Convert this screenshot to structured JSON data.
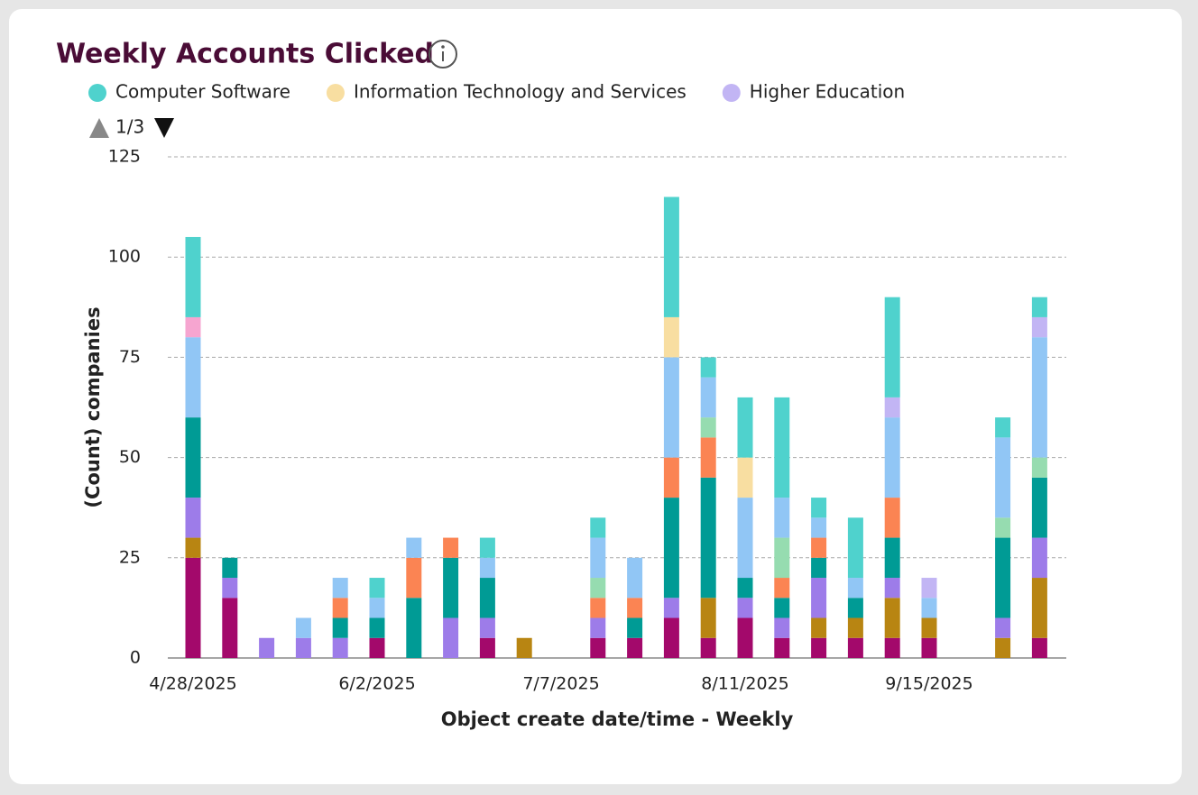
{
  "chart_data": {
    "type": "bar",
    "stacked": true,
    "title": "Weekly Accounts Clicked",
    "legend_page": "1/3",
    "xlabel": "Object create date/time - Weekly",
    "ylabel": "(Count) companies",
    "categories": [
      "4/28/2025",
      null,
      null,
      null,
      null,
      "6/2/2025",
      null,
      null,
      null,
      null,
      "7/7/2025",
      null,
      null,
      null,
      null,
      "8/11/2025",
      null,
      null,
      null,
      null,
      "9/15/2025",
      null,
      null,
      null
    ],
    "ylim": [
      0,
      125
    ],
    "yticks": [
      0,
      25,
      50,
      75,
      100,
      125
    ],
    "grid": true,
    "series": [
      {
        "color": "#a3096b",
        "values": [
          25,
          15,
          0,
          0,
          0,
          5,
          0,
          0,
          5,
          0,
          0,
          5,
          5,
          10,
          5,
          10,
          5,
          5,
          5,
          5,
          5,
          0,
          0,
          5
        ]
      },
      {
        "color": "#b88512",
        "values": [
          5,
          0,
          0,
          0,
          0,
          0,
          0,
          0,
          0,
          5,
          0,
          0,
          0,
          0,
          10,
          0,
          0,
          5,
          5,
          10,
          5,
          0,
          5,
          15
        ]
      },
      {
        "color": "#9d7ce9",
        "values": [
          10,
          5,
          5,
          5,
          5,
          0,
          0,
          10,
          5,
          0,
          0,
          5,
          0,
          5,
          0,
          5,
          5,
          10,
          0,
          5,
          0,
          0,
          5,
          10
        ]
      },
      {
        "color": "#009b95",
        "values": [
          20,
          5,
          0,
          0,
          5,
          5,
          15,
          15,
          10,
          0,
          0,
          0,
          5,
          25,
          30,
          5,
          5,
          5,
          5,
          10,
          0,
          0,
          20,
          15
        ]
      },
      {
        "color": "#fb8453",
        "values": [
          0,
          0,
          0,
          0,
          5,
          0,
          10,
          5,
          0,
          0,
          0,
          5,
          5,
          10,
          10,
          0,
          5,
          5,
          0,
          10,
          0,
          0,
          0,
          0
        ]
      },
      {
        "color": "#96dcb0",
        "values": [
          0,
          0,
          0,
          0,
          0,
          0,
          0,
          0,
          0,
          0,
          0,
          5,
          0,
          0,
          5,
          0,
          10,
          0,
          0,
          0,
          0,
          0,
          5,
          5
        ]
      },
      {
        "color": "#91c6f5",
        "values": [
          20,
          0,
          0,
          5,
          5,
          5,
          5,
          0,
          5,
          0,
          0,
          10,
          10,
          25,
          10,
          20,
          10,
          5,
          5,
          20,
          5,
          0,
          20,
          30
        ]
      },
      {
        "name": "Higher Education",
        "color": "#c2b5f4",
        "values": [
          0,
          0,
          0,
          0,
          0,
          0,
          0,
          0,
          0,
          0,
          0,
          0,
          0,
          0,
          0,
          0,
          0,
          0,
          0,
          5,
          5,
          0,
          0,
          5
        ]
      },
      {
        "name": "Information Technology and Services",
        "color": "#f8dea1",
        "values": [
          0,
          0,
          0,
          0,
          0,
          0,
          0,
          0,
          0,
          0,
          0,
          0,
          0,
          10,
          0,
          10,
          0,
          0,
          0,
          0,
          0,
          0,
          0,
          0
        ]
      },
      {
        "color": "#f6a5d0",
        "values": [
          5,
          0,
          0,
          0,
          0,
          0,
          0,
          0,
          0,
          0,
          0,
          0,
          0,
          0,
          0,
          0,
          0,
          0,
          0,
          0,
          0,
          0,
          0,
          0
        ]
      },
      {
        "name": "Computer Software",
        "color": "#4fd2cd",
        "values": [
          20,
          0,
          0,
          0,
          0,
          5,
          0,
          0,
          5,
          0,
          0,
          5,
          0,
          30,
          5,
          15,
          25,
          5,
          15,
          25,
          0,
          0,
          5,
          5
        ]
      }
    ]
  }
}
